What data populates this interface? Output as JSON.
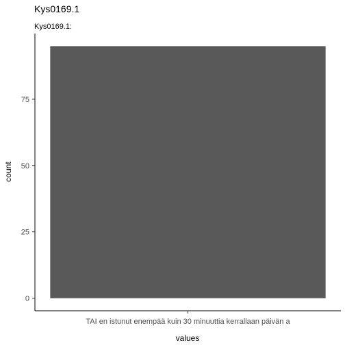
{
  "chart_data": {
    "type": "bar",
    "title": "Kys0169.1",
    "subtitle": "Kys0169.1:",
    "xlabel": "values",
    "ylabel": "count",
    "categories": [
      "TAI en istunut enempää kuin 30 minuuttia kerrallaan päivän a"
    ],
    "values": [
      95
    ],
    "ylim": [
      -4.75,
      99.75
    ],
    "yticks": [
      0,
      25,
      50,
      75
    ],
    "grid": false,
    "legend": "none",
    "bar_color": "#595959"
  }
}
